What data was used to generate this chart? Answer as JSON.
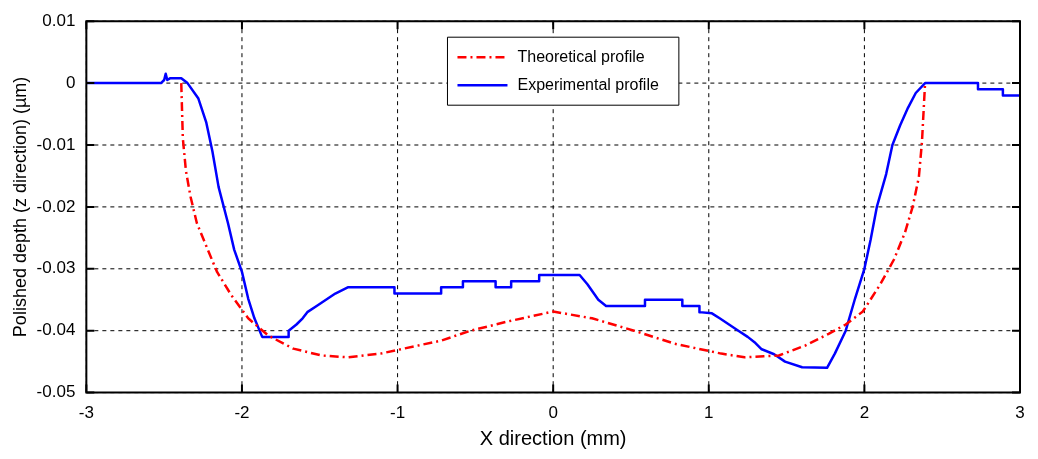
{
  "chart_data": {
    "type": "line",
    "xlabel": "X direction (mm)",
    "ylabel": "Polished depth (z direction) (µm)",
    "xlim": [
      -3,
      3
    ],
    "xticks": [
      -3,
      -2,
      -1,
      0,
      1,
      2,
      3
    ],
    "ylim": [
      -0.05,
      0.01
    ],
    "yticks": [
      -0.05,
      -0.04,
      -0.03,
      -0.02,
      -0.01,
      0,
      0.01
    ],
    "grid": true,
    "legend": "top",
    "marker": "none",
    "series": [
      {
        "name": "Theoretical profile",
        "color": "#ff0000",
        "line_style": "dashed",
        "x": [
          -2.39,
          -2.38,
          -2.36,
          -2.33,
          -2.29,
          -2.22,
          -2.16,
          -2.07,
          -1.96,
          -1.83,
          -1.67,
          -1.49,
          -1.32,
          -1.11,
          -0.72,
          -0.53,
          -0.29,
          0,
          0.25,
          0.52,
          0.78,
          1.08,
          1.23,
          1.45,
          1.62,
          1.77,
          1.88,
          1.99,
          2.1,
          2.19,
          2.26,
          2.31,
          2.35,
          2.37,
          2.39
        ],
        "values": [
          0,
          -0.0089,
          -0.0142,
          -0.0184,
          -0.0226,
          -0.0269,
          -0.0305,
          -0.0342,
          -0.038,
          -0.0408,
          -0.0429,
          -0.044,
          -0.0443,
          -0.0437,
          -0.0416,
          -0.04,
          -0.0385,
          -0.0369,
          -0.038,
          -0.04,
          -0.0421,
          -0.0437,
          -0.0443,
          -0.044,
          -0.0424,
          -0.0405,
          -0.039,
          -0.0369,
          -0.0326,
          -0.0285,
          -0.0242,
          -0.02,
          -0.0152,
          -0.0095,
          0
        ]
      },
      {
        "name": "Experimental profile",
        "color": "#0000ff",
        "line_style": "solid",
        "x": [
          -3,
          -2.52,
          -2.5,
          -2.49,
          -2.48,
          -2.46,
          -2.39,
          -2.35,
          -2.28,
          -2.23,
          -2.19,
          -2.15,
          -2.09,
          -2.05,
          -2,
          -1.96,
          -1.92,
          -1.87,
          -1.7,
          -1.7,
          -1.65,
          -1.61,
          -1.58,
          -1.52,
          -1.46,
          -1.4,
          -1.32,
          -1.02,
          -1.02,
          -0.72,
          -0.72,
          -0.58,
          -0.58,
          -0.37,
          -0.37,
          -0.27,
          -0.27,
          -0.09,
          -0.09,
          0.17,
          0.22,
          0.29,
          0.34,
          0.59,
          0.59,
          0.83,
          0.83,
          0.94,
          0.94,
          1.02,
          1.07,
          1.13,
          1.19,
          1.25,
          1.3,
          1.34,
          1.42,
          1.49,
          1.6,
          1.76,
          1.81,
          1.88,
          1.94,
          2,
          2.04,
          2.08,
          2.14,
          2.18,
          2.23,
          2.28,
          2.33,
          2.39,
          2.73,
          2.73,
          2.89,
          2.89,
          3
        ],
        "values": [
          0,
          0,
          0.0005,
          0.0015,
          0.0005,
          0.0008,
          0.0008,
          0,
          -0.0025,
          -0.0063,
          -0.011,
          -0.0168,
          -0.0226,
          -0.0269,
          -0.0305,
          -0.0348,
          -0.038,
          -0.041,
          -0.041,
          -0.04,
          -0.039,
          -0.038,
          -0.037,
          -0.036,
          -0.035,
          -0.034,
          -0.033,
          -0.033,
          -0.034,
          -0.034,
          -0.033,
          -0.033,
          -0.032,
          -0.032,
          -0.033,
          -0.033,
          -0.032,
          -0.032,
          -0.031,
          -0.031,
          -0.0325,
          -0.035,
          -0.036,
          -0.036,
          -0.035,
          -0.035,
          -0.036,
          -0.036,
          -0.037,
          -0.0372,
          -0.038,
          -0.039,
          -0.04,
          -0.041,
          -0.042,
          -0.043,
          -0.0438,
          -0.045,
          -0.0459,
          -0.046,
          -0.0437,
          -0.04,
          -0.0348,
          -0.03,
          -0.0253,
          -0.02,
          -0.0147,
          -0.01,
          -0.0068,
          -0.004,
          -0.0016,
          0,
          0,
          -0.001,
          -0.001,
          -0.002,
          -0.002
        ]
      }
    ]
  }
}
